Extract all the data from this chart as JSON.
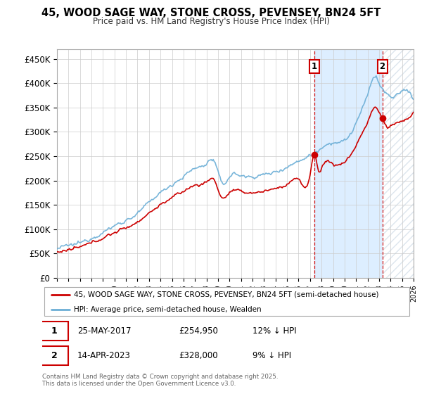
{
  "title": "45, WOOD SAGE WAY, STONE CROSS, PEVENSEY, BN24 5FT",
  "subtitle": "Price paid vs. HM Land Registry's House Price Index (HPI)",
  "yticks": [
    0,
    50000,
    100000,
    150000,
    200000,
    250000,
    300000,
    350000,
    400000,
    450000
  ],
  "ytick_labels": [
    "£0",
    "£50K",
    "£100K",
    "£150K",
    "£200K",
    "£250K",
    "£300K",
    "£350K",
    "£400K",
    "£450K"
  ],
  "ylim": [
    0,
    470000
  ],
  "hpi_color": "#6baed6",
  "price_color": "#cc0000",
  "vline_color": "#cc0000",
  "shade_color": "#ddeeff",
  "hatch_color": "#bbccdd",
  "sale1_year": 2017.38,
  "sale2_year": 2023.28,
  "legend_line1": "45, WOOD SAGE WAY, STONE CROSS, PEVENSEY, BN24 5FT (semi-detached house)",
  "legend_line2": "HPI: Average price, semi-detached house, Wealden",
  "footer": "Contains HM Land Registry data © Crown copyright and database right 2025.\nThis data is licensed under the Open Government Licence v3.0.",
  "background_color": "#ffffff",
  "chart_bg": "#f8f8ff",
  "grid_color": "#cccccc",
  "x_start_year": 1995,
  "x_end_year": 2026
}
